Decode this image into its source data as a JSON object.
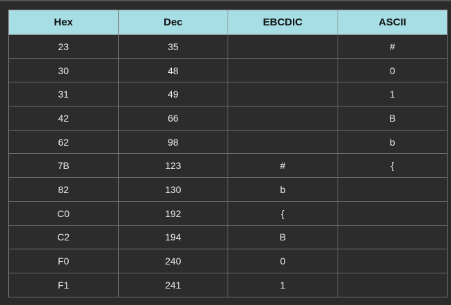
{
  "table": {
    "headers": [
      "Hex",
      "Dec",
      "EBCDIC",
      "ASCII"
    ],
    "rows": [
      [
        "23",
        "35",
        "",
        "#"
      ],
      [
        "30",
        "48",
        "",
        "0"
      ],
      [
        "31",
        "49",
        "",
        "1"
      ],
      [
        "42",
        "66",
        "",
        "B"
      ],
      [
        "62",
        "98",
        "",
        "b"
      ],
      [
        "7B",
        "123",
        "#",
        "{"
      ],
      [
        "82",
        "130",
        "b",
        ""
      ],
      [
        "C0",
        "192",
        "{",
        ""
      ],
      [
        "C2",
        "194",
        "B",
        ""
      ],
      [
        "F0",
        "240",
        "0",
        ""
      ],
      [
        "F1",
        "241",
        "1",
        ""
      ]
    ]
  }
}
